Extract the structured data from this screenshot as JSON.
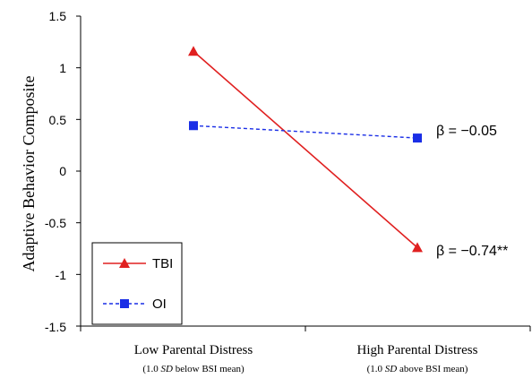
{
  "chart_data": {
    "type": "line",
    "ylabel": "Adaptive Behavior Composite",
    "ylim": [
      -1.5,
      1.5
    ],
    "yticks": [
      "1.5",
      "1",
      "0.5",
      "0",
      "-0.5",
      "-1",
      "-1.5"
    ],
    "grid": false,
    "legend_position": "bottom-left",
    "categories": [
      {
        "label": "Low Parental Distress",
        "sub_pre": "(1.0 ",
        "sub_em": "SD",
        "sub_post": " below BSI mean)"
      },
      {
        "label": "High Parental Distress",
        "sub_pre": "(1.0 ",
        "sub_em": "SD",
        "sub_post": " above BSI mean)"
      }
    ],
    "series": [
      {
        "name": "TBI",
        "values": [
          1.16,
          -0.74
        ],
        "color": "#e02020",
        "marker": "triangle",
        "dash": "solid",
        "annotation": "β = −0.74**"
      },
      {
        "name": "OI",
        "values": [
          0.44,
          0.32
        ],
        "color": "#1a2ee6",
        "marker": "square",
        "dash": "dashed",
        "annotation": "β = −0.05"
      }
    ]
  }
}
